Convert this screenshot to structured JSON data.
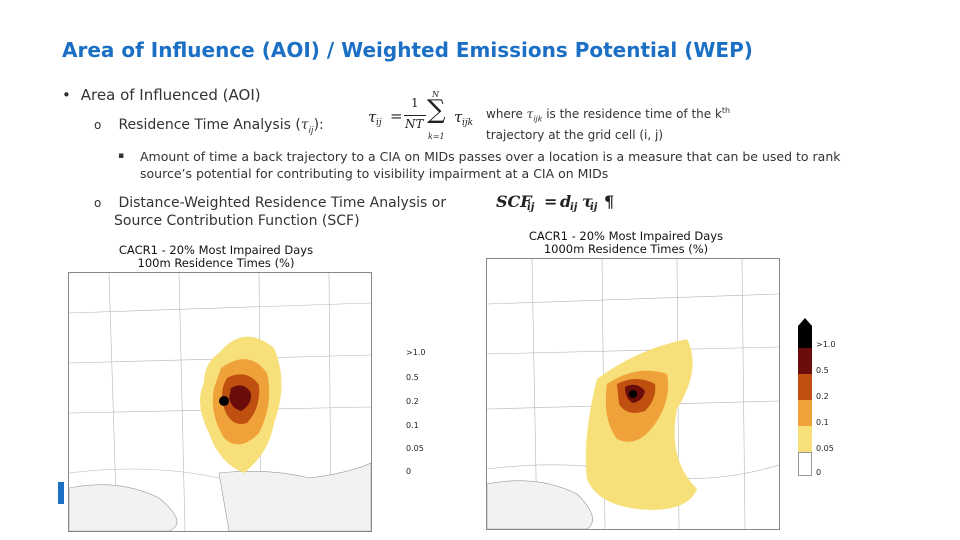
{
  "slide": {
    "title": "Area of Influence (AOI) / Weighted Emissions Potential (WEP)",
    "bullet_marker": "•",
    "bullet1": "Area of Influenced (AOI)",
    "sub_marker": "o",
    "sub1_text": "Residence Time Analysis (",
    "sub1_symbol": "τ",
    "sub1_sub": "ij",
    "sub1_close": "):",
    "note_marker": "▪",
    "note_line1": "Amount of time a back trajectory to a CIA on MIDs passes over a location is a measure that can be used to rank",
    "note_line2": "source’s potential for contributing to visibility impairment at a CIA on MIDs",
    "sub2_line1": "Distance-Weighted Residence Time Analysis or",
    "sub2_line2": "Source Contribution Function (SCF)"
  },
  "formula1": {
    "lhs": "τ",
    "lhs_sub": "ij",
    "eq": "=",
    "frac_num": "1",
    "frac_den": "NT",
    "sum": "∑",
    "sum_top": "N",
    "sum_bottom": "k=1",
    "term": "τ",
    "term_sub": "ijk"
  },
  "where_text": {
    "line1_pre": "where ",
    "sym": "τ",
    "sym_sub": "ijk",
    "line1_post": " is the residence time of the k",
    "line1_sup": "th",
    "line2": "trajectory at the grid cell (i, j)"
  },
  "formula2": {
    "lhs": "SCF",
    "lhs_sub": "ij",
    "eq": "=",
    "d": "d",
    "d_sub": "ij",
    "t": "τ",
    "t_sub": "ij",
    "pilcrow": "¶"
  },
  "maps": [
    {
      "title_line1": "CACR1 - 20% Most Impaired Days",
      "title_line2": "100m Residence Times (%)",
      "legend": [
        ">1.0",
        "0.5",
        "0.2",
        "0.1",
        "0.05",
        "0"
      ],
      "colors": [
        "#000000",
        "#6b0d0a",
        "#c0500f",
        "#f0a23a",
        "#f7e07a",
        "#ffffff"
      ]
    },
    {
      "title_line1": "CACR1 - 20% Most Impaired Days",
      "title_line2": "1000m Residence Times (%)",
      "legend": [
        ">1.0",
        "0.5",
        "0.2",
        "0.1",
        "0.05",
        "0"
      ],
      "colors": [
        "#000000",
        "#6b0d0a",
        "#c0500f",
        "#f0a23a",
        "#f7e07a",
        "#ffffff"
      ]
    }
  ]
}
